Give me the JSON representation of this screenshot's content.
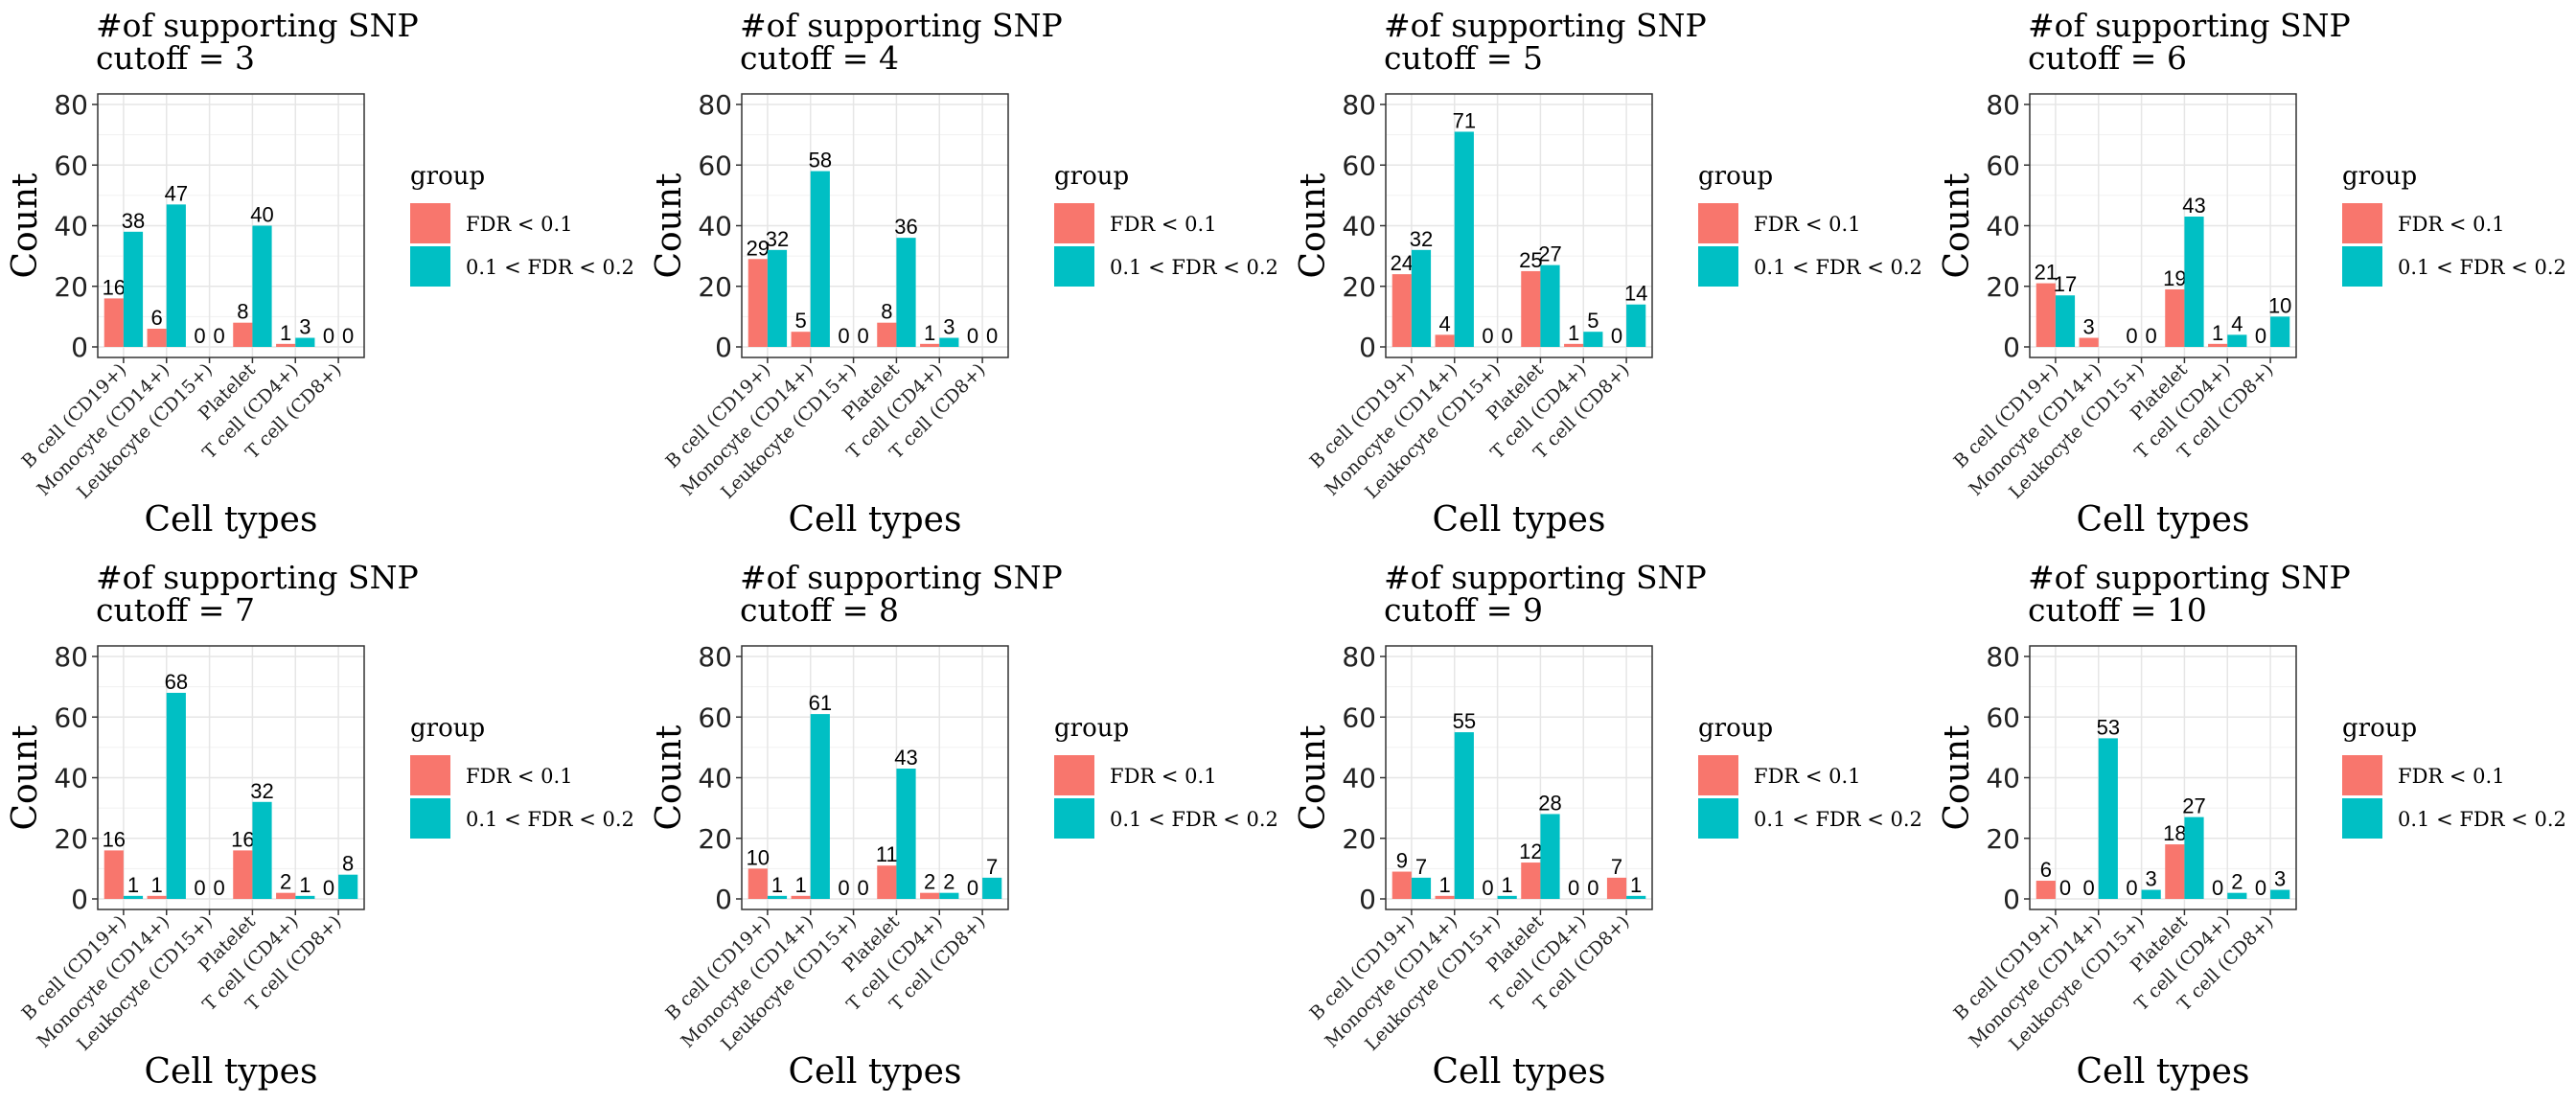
{
  "chart_data": [
    {
      "type": "bar",
      "title": "#of supporting SNP\n cutoff = 3",
      "xlabel": "Cell types",
      "ylabel": "Count",
      "ylim": [
        0,
        80
      ],
      "yticks": [
        0,
        20,
        40,
        60,
        80
      ],
      "categories": [
        "B cell (CD19+)",
        "Monocyte (CD14+)",
        "Leukocyte (CD15+)",
        "Platelet",
        "T cell (CD4+)",
        "T cell (CD8+)"
      ],
      "legend_title": "group",
      "series": [
        {
          "name": "FDR < 0.1",
          "color": "#f8766d",
          "values": [
            16,
            6,
            0,
            8,
            1,
            0
          ]
        },
        {
          "name": "0.1 < FDR < 0.2",
          "color": "#00bfc4",
          "values": [
            38,
            47,
            0,
            40,
            3,
            0
          ]
        }
      ]
    },
    {
      "type": "bar",
      "title": "#of supporting SNP\n cutoff = 4",
      "xlabel": "Cell types",
      "ylabel": "Count",
      "ylim": [
        0,
        80
      ],
      "yticks": [
        0,
        20,
        40,
        60,
        80
      ],
      "categories": [
        "B cell (CD19+)",
        "Monocyte (CD14+)",
        "Leukocyte (CD15+)",
        "Platelet",
        "T cell (CD4+)",
        "T cell (CD8+)"
      ],
      "legend_title": "group",
      "series": [
        {
          "name": "FDR < 0.1",
          "color": "#f8766d",
          "values": [
            29,
            5,
            0,
            8,
            1,
            0
          ]
        },
        {
          "name": "0.1 < FDR < 0.2",
          "color": "#00bfc4",
          "values": [
            32,
            58,
            0,
            36,
            3,
            0
          ]
        }
      ]
    },
    {
      "type": "bar",
      "title": "#of supporting SNP\n cutoff = 5",
      "xlabel": "Cell types",
      "ylabel": "Count",
      "ylim": [
        0,
        80
      ],
      "yticks": [
        0,
        20,
        40,
        60,
        80
      ],
      "categories": [
        "B cell (CD19+)",
        "Monocyte (CD14+)",
        "Leukocyte (CD15+)",
        "Platelet",
        "T cell (CD4+)",
        "T cell (CD8+)"
      ],
      "legend_title": "group",
      "series": [
        {
          "name": "FDR < 0.1",
          "color": "#f8766d",
          "values": [
            24,
            4,
            0,
            25,
            1,
            0
          ]
        },
        {
          "name": "0.1 < FDR < 0.2",
          "color": "#00bfc4",
          "values": [
            32,
            71,
            0,
            27,
            5,
            14
          ]
        }
      ]
    },
    {
      "type": "bar",
      "title": "#of supporting SNP\n cutoff = 6",
      "xlabel": "Cell types",
      "ylabel": "Count",
      "ylim": [
        0,
        80
      ],
      "yticks": [
        0,
        20,
        40,
        60,
        80
      ],
      "categories": [
        "B cell (CD19+)",
        "Monocyte (CD14+)",
        "Leukocyte (CD15+)",
        "Platelet",
        "T cell (CD4+)",
        "T cell (CD8+)"
      ],
      "legend_title": "group",
      "series": [
        {
          "name": "FDR < 0.1",
          "color": "#f8766d",
          "values": [
            21,
            3,
            0,
            19,
            1,
            0
          ]
        },
        {
          "name": "0.1 < FDR < 0.2",
          "color": "#00bfc4",
          "values": [
            17,
            null,
            0,
            43,
            4,
            10
          ]
        }
      ]
    },
    {
      "type": "bar",
      "title": "#of supporting SNP\n cutoff = 7",
      "xlabel": "Cell types",
      "ylabel": "Count",
      "ylim": [
        0,
        80
      ],
      "yticks": [
        0,
        20,
        40,
        60,
        80
      ],
      "categories": [
        "B cell (CD19+)",
        "Monocyte (CD14+)",
        "Leukocyte (CD15+)",
        "Platelet",
        "T cell (CD4+)",
        "T cell (CD8+)"
      ],
      "legend_title": "group",
      "series": [
        {
          "name": "FDR < 0.1",
          "color": "#f8766d",
          "values": [
            16,
            1,
            0,
            16,
            2,
            0
          ]
        },
        {
          "name": "0.1 < FDR < 0.2",
          "color": "#00bfc4",
          "values": [
            1,
            68,
            0,
            32,
            1,
            8
          ]
        }
      ]
    },
    {
      "type": "bar",
      "title": "#of supporting SNP\n cutoff = 8",
      "xlabel": "Cell types",
      "ylabel": "Count",
      "ylim": [
        0,
        80
      ],
      "yticks": [
        0,
        20,
        40,
        60,
        80
      ],
      "categories": [
        "B cell (CD19+)",
        "Monocyte (CD14+)",
        "Leukocyte (CD15+)",
        "Platelet",
        "T cell (CD4+)",
        "T cell (CD8+)"
      ],
      "legend_title": "group",
      "series": [
        {
          "name": "FDR < 0.1",
          "color": "#f8766d",
          "values": [
            10,
            1,
            0,
            11,
            2,
            0
          ]
        },
        {
          "name": "0.1 < FDR < 0.2",
          "color": "#00bfc4",
          "values": [
            1,
            61,
            0,
            43,
            2,
            7
          ]
        }
      ]
    },
    {
      "type": "bar",
      "title": "#of supporting SNP\n cutoff = 9",
      "xlabel": "Cell types",
      "ylabel": "Count",
      "ylim": [
        0,
        80
      ],
      "yticks": [
        0,
        20,
        40,
        60,
        80
      ],
      "categories": [
        "B cell (CD19+)",
        "Monocyte (CD14+)",
        "Leukocyte (CD15+)",
        "Platelet",
        "T cell (CD4+)",
        "T cell (CD8+)"
      ],
      "legend_title": "group",
      "series": [
        {
          "name": "FDR < 0.1",
          "color": "#f8766d",
          "values": [
            9,
            1,
            0,
            12,
            0,
            7
          ]
        },
        {
          "name": "0.1 < FDR < 0.2",
          "color": "#00bfc4",
          "values": [
            7,
            55,
            1,
            28,
            0,
            1
          ]
        }
      ]
    },
    {
      "type": "bar",
      "title": "#of supporting SNP\n cutoff = 10",
      "xlabel": "Cell types",
      "ylabel": "Count",
      "ylim": [
        0,
        80
      ],
      "yticks": [
        0,
        20,
        40,
        60,
        80
      ],
      "categories": [
        "B cell (CD19+)",
        "Monocyte (CD14+)",
        "Leukocyte (CD15+)",
        "Platelet",
        "T cell (CD4+)",
        "T cell (CD8+)"
      ],
      "legend_title": "group",
      "series": [
        {
          "name": "FDR < 0.1",
          "color": "#f8766d",
          "values": [
            6,
            0,
            0,
            18,
            0,
            0
          ]
        },
        {
          "name": "0.1 < FDR < 0.2",
          "color": "#00bfc4",
          "values": [
            0,
            53,
            3,
            27,
            2,
            3
          ]
        }
      ]
    }
  ]
}
